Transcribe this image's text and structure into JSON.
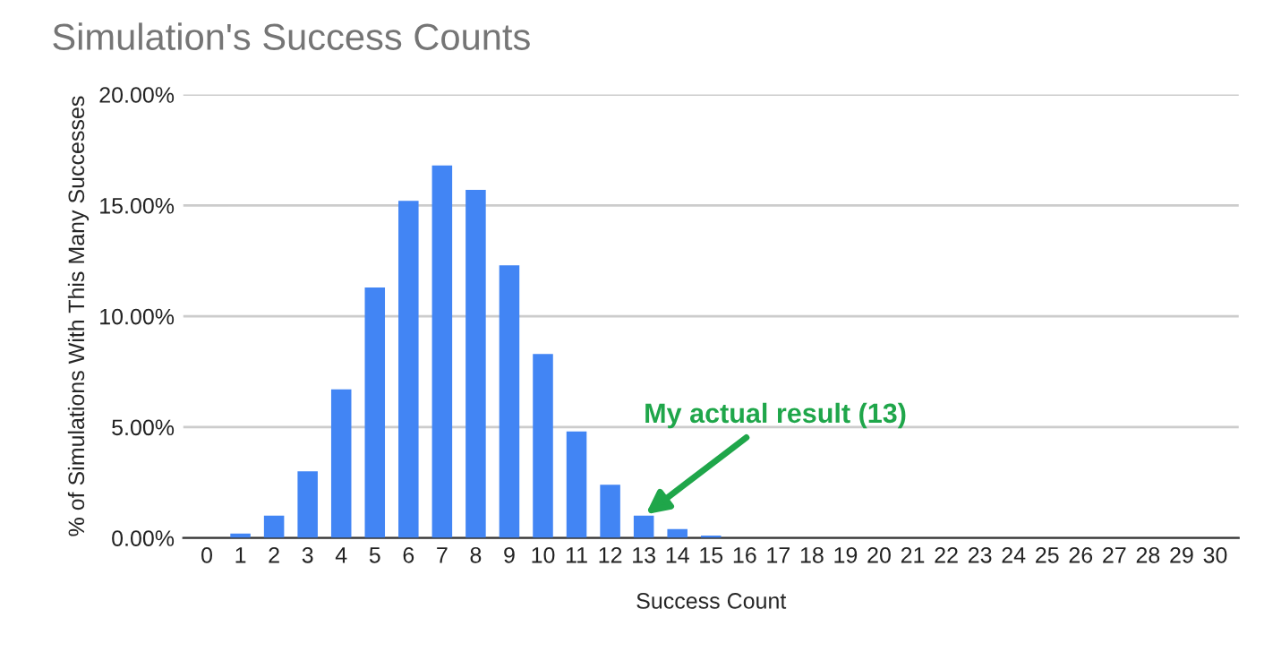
{
  "chart_data": {
    "type": "bar",
    "title": "Simulation's Success Counts",
    "xlabel": "Success Count",
    "ylabel": "% of Simulations With This Many Successes",
    "categories": [
      "0",
      "1",
      "2",
      "3",
      "4",
      "5",
      "6",
      "7",
      "8",
      "9",
      "10",
      "11",
      "12",
      "13",
      "14",
      "15",
      "16",
      "17",
      "18",
      "19",
      "20",
      "21",
      "22",
      "23",
      "24",
      "25",
      "26",
      "27",
      "28",
      "29",
      "30"
    ],
    "values": [
      0,
      0.2,
      1.0,
      3.0,
      6.7,
      11.3,
      15.2,
      16.8,
      15.7,
      12.3,
      8.3,
      4.8,
      2.4,
      1.0,
      0.4,
      0.1,
      0,
      0,
      0,
      0,
      0,
      0,
      0,
      0,
      0,
      0,
      0,
      0,
      0,
      0,
      0
    ],
    "color": "#4285f4",
    "ylim": [
      0,
      20
    ],
    "yticks": [
      {
        "value": 0,
        "label": "0.00%"
      },
      {
        "value": 5,
        "label": "5.00%"
      },
      {
        "value": 10,
        "label": "10.00%"
      },
      {
        "value": 15,
        "label": "15.00%"
      },
      {
        "value": 20,
        "label": "20.00%"
      }
    ],
    "grid": "y",
    "annotations": [
      {
        "text": "My actual result (13)",
        "x": "13",
        "y": 1.0
      }
    ]
  }
}
